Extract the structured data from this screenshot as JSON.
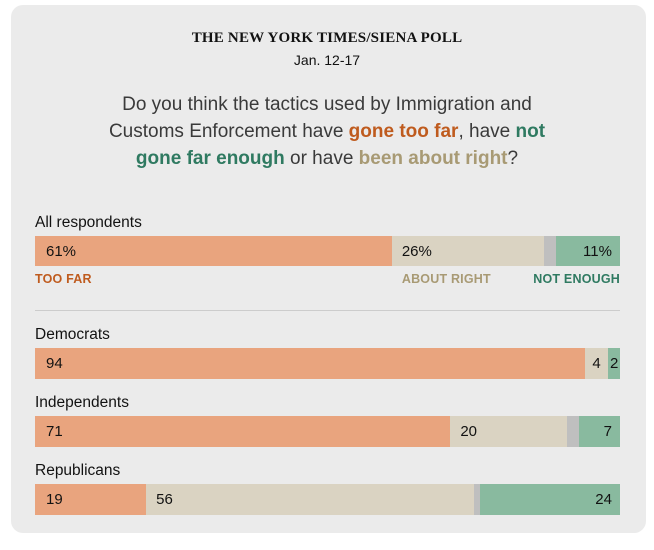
{
  "header": {
    "title": "THE NEW YORK TIMES/SIENA POLL",
    "date": "Jan. 12-17"
  },
  "question": {
    "part1": "Do you think the tactics used by Immigration and Customs Enforcement have ",
    "too_far_phrase": "gone too far",
    "part2": ", have ",
    "not_enough_phrase": "not gone far enough",
    "part3": " or have ",
    "about_right_phrase": "been about right",
    "part4": "?"
  },
  "legend": {
    "too_far": "TOO FAR",
    "about_right": "ABOUT RIGHT",
    "not_enough": "NOT ENOUGH"
  },
  "colors": {
    "card_background": "#ebebeb",
    "too_far_fill": "#e9a47e",
    "about_right_fill": "#dad3c2",
    "unlabeled_fill": "#bfbfbf",
    "not_enough_fill": "#89ba9f",
    "too_far_text": "#bf5b1e",
    "about_right_text": "#a89a74",
    "not_enough_text": "#2f7a61",
    "text": "#121212"
  },
  "chart_data": {
    "type": "bar",
    "orientation": "horizontal",
    "stacked": true,
    "xlim": [
      0,
      100
    ],
    "grid": false,
    "legend_position": "below-first-bar",
    "categories": [
      "All respondents",
      "Democrats",
      "Independents",
      "Republicans"
    ],
    "series": [
      {
        "key": "too-far",
        "name": "Too far",
        "color": "#e9a47e",
        "values": [
          61,
          94,
          71,
          19
        ]
      },
      {
        "key": "about-right",
        "name": "About right",
        "color": "#dad3c2",
        "values": [
          26,
          4,
          20,
          56
        ]
      },
      {
        "key": "no-answer",
        "name": "unlabeled-remainder",
        "color": "#bfbfbf",
        "values": [
          2,
          0,
          2,
          1
        ]
      },
      {
        "key": "not-enough",
        "name": "Not enough",
        "color": "#89ba9f",
        "values": [
          11,
          2,
          7,
          24
        ]
      }
    ],
    "bar_labels": [
      [
        "61%",
        "26%",
        "",
        "11%"
      ],
      [
        "94",
        "4",
        "",
        "2"
      ],
      [
        "71",
        "20",
        "",
        "7"
      ],
      [
        "19",
        "56",
        "",
        "24"
      ]
    ]
  }
}
